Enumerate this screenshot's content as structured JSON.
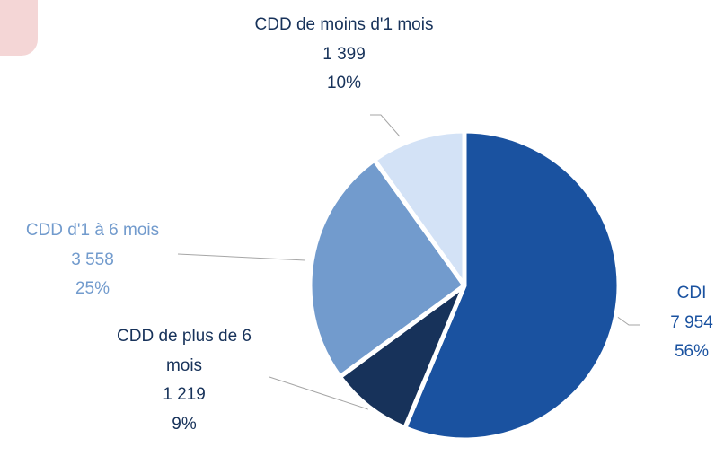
{
  "chart_data": {
    "type": "pie",
    "categories": [
      "CDI",
      "CDD de plus de 6 mois",
      "CDD d'1 à 6 mois",
      "CDD de moins d'1 mois"
    ],
    "values": [
      7954,
      1219,
      3558,
      1399
    ],
    "value_labels": [
      "7 954",
      "1 219",
      "3 558",
      "1 399"
    ],
    "percentages": [
      56,
      9,
      25,
      10
    ],
    "percentage_labels": [
      "56%",
      "9%",
      "25%",
      "10%"
    ],
    "colors": [
      "#1a52a0",
      "#17325a",
      "#729bcd",
      "#d3e2f6"
    ],
    "label_colors": [
      "#1a52a0",
      "#17325a",
      "#729bcd",
      "#17325a"
    ]
  }
}
